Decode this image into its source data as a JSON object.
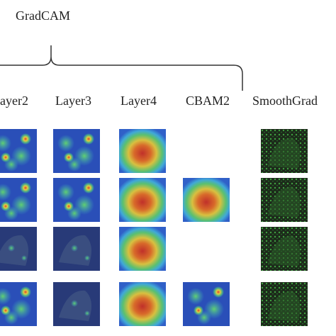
{
  "header": {
    "title": "GradCAM"
  },
  "columns": [
    "ayer2",
    "Layer3",
    "Layer4",
    "CBAM2",
    "SmoothGrad"
  ]
}
